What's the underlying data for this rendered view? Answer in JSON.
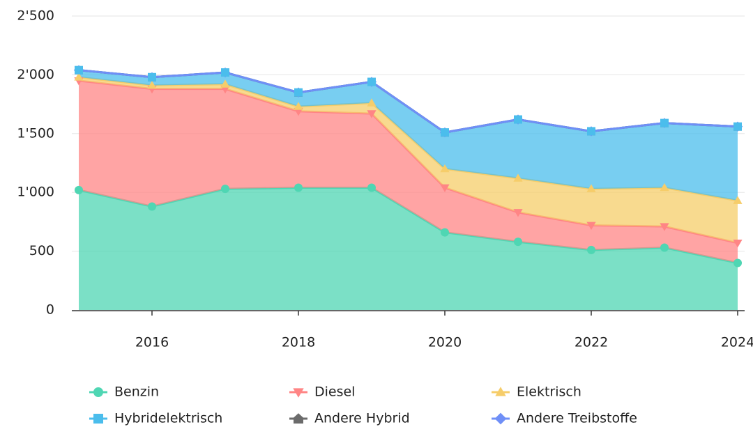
{
  "chart_data": {
    "type": "stacked_area",
    "x": [
      2015,
      2016,
      2017,
      2018,
      2019,
      2020,
      2021,
      2022,
      2023,
      2024
    ],
    "series": [
      {
        "name": "Benzin",
        "color": "#4fd6b3",
        "marker": "circle",
        "values": [
          1020,
          880,
          1030,
          1040,
          1040,
          660,
          580,
          510,
          530,
          400
        ]
      },
      {
        "name": "Diesel",
        "color": "#ff8585",
        "marker": "triangle-down",
        "values": [
          930,
          1000,
          850,
          650,
          630,
          380,
          250,
          210,
          180,
          170
        ]
      },
      {
        "name": "Elektrisch",
        "color": "#f6cd6a",
        "marker": "triangle-up",
        "values": [
          30,
          30,
          40,
          40,
          90,
          160,
          290,
          310,
          330,
          360
        ]
      },
      {
        "name": "Hybridelektrisch",
        "color": "#4bbdec",
        "marker": "square",
        "values": [
          60,
          70,
          100,
          120,
          180,
          310,
          500,
          490,
          550,
          630
        ]
      },
      {
        "name": "Andere Hybrid",
        "color": "#6b6b6b",
        "marker": "house",
        "values": [
          0,
          0,
          0,
          0,
          0,
          0,
          0,
          0,
          0,
          0
        ]
      },
      {
        "name": "Andere Treibstoffe",
        "color": "#6f8ff7",
        "marker": "diamond",
        "values": [
          0,
          0,
          0,
          0,
          0,
          0,
          0,
          0,
          0,
          0
        ]
      }
    ],
    "xlim": [
      2015,
      2024
    ],
    "xticks": [
      2016,
      2018,
      2020,
      2022,
      2024
    ],
    "ylim": [
      0,
      2500
    ],
    "yticks": [
      0,
      {
        "value": 500,
        "label": "500"
      },
      {
        "value": 1000,
        "label": "1'000"
      },
      {
        "value": 1500,
        "label": "1'500"
      },
      {
        "value": 2000,
        "label": "2'000"
      },
      {
        "value": 2500,
        "label": "2'500"
      }
    ],
    "grid": true
  }
}
